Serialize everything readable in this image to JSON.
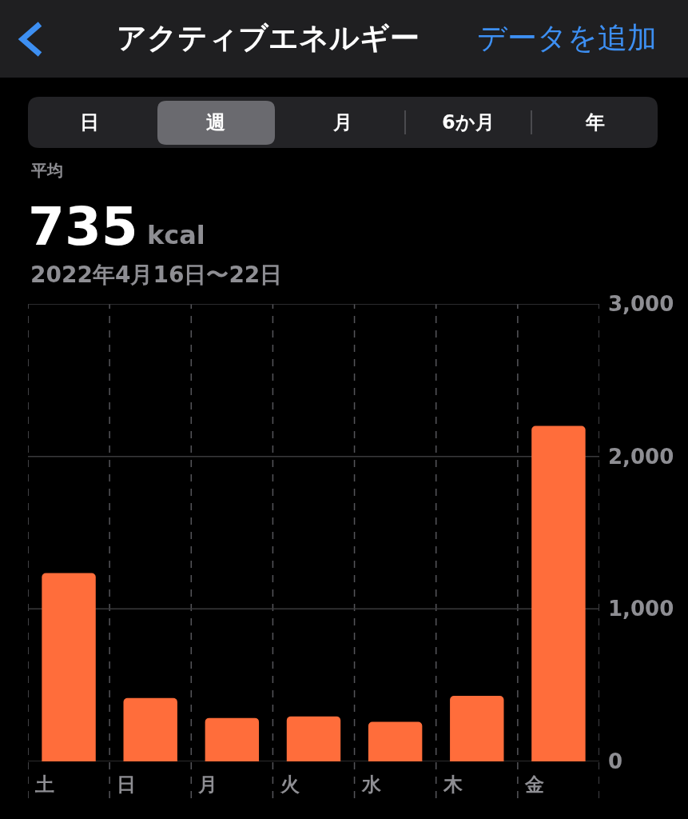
{
  "chart_data": {
    "type": "bar",
    "title": "アクティブエネルギー",
    "subtitle": "2022年4月16日〜22日",
    "annotations": [
      "データを追加",
      "日",
      "週",
      "月",
      "6か月",
      "年",
      "平均",
      "735",
      "kcal"
    ],
    "categories": [
      "土",
      "日",
      "月",
      "火",
      "水",
      "木",
      "金"
    ],
    "values": [
      1235,
      415,
      285,
      295,
      260,
      430,
      2200
    ],
    "color": "#ff6d3b",
    "ylim": [
      0,
      3000
    ],
    "yticks": [
      0,
      {
        "value": 1000,
        "label": "1,000"
      },
      {
        "value": 2000,
        "label": "2,000"
      },
      {
        "value": 3000,
        "label": "3,000"
      }
    ],
    "grid": true
  }
}
